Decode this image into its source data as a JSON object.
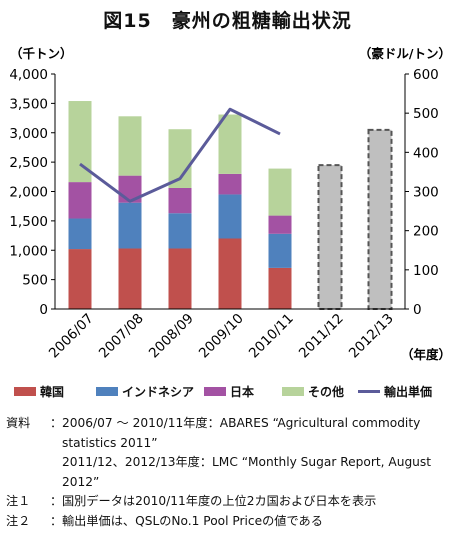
{
  "title": "図15　豪州の粗糖輸出状況",
  "colors": {
    "korea": "#c0504d",
    "indonesia": "#4f81bd",
    "japan": "#a352a3",
    "other": "#b7d39b",
    "forecast": "#bfbfbf",
    "price_line": "#5b5b9a"
  },
  "chart_data": {
    "type": "bar",
    "stacked": true,
    "categories": [
      "2006/07",
      "2007/08",
      "2008/09",
      "2009/10",
      "2010/11",
      "2011/12",
      "2012/13"
    ],
    "series": [
      {
        "name": "韓国",
        "values": [
          1020,
          1030,
          1030,
          1200,
          700,
          null,
          null
        ]
      },
      {
        "name": "インドネシア",
        "values": [
          520,
          780,
          600,
          750,
          580,
          null,
          null
        ]
      },
      {
        "name": "日本",
        "values": [
          620,
          460,
          430,
          350,
          310,
          null,
          null
        ]
      },
      {
        "name": "その他",
        "values": [
          1380,
          1010,
          1000,
          1010,
          800,
          null,
          null
        ]
      }
    ],
    "forecast_totals": [
      null,
      null,
      null,
      null,
      null,
      2450,
      3050
    ],
    "line_series": {
      "name": "輸出単価",
      "values": [
        370,
        275,
        333,
        510,
        447,
        null,
        null
      ]
    },
    "ylabel_left": "（千トン）",
    "ylabel_right": "（豪ドル/トン）",
    "xlabel": "（年度）",
    "ylim_left": [
      0,
      4000
    ],
    "ylim_right": [
      0,
      600
    ],
    "yticks_left": [
      "0",
      "500",
      "1,000",
      "1,500",
      "2,000",
      "2,500",
      "3,000",
      "3,500",
      "4,000"
    ],
    "yticks_right": [
      "0",
      "100",
      "200",
      "300",
      "400",
      "500",
      "600"
    ],
    "grid": false,
    "legend_position": "bottom"
  },
  "legend": {
    "korea": "韓国",
    "indonesia": "インドネシア",
    "japan": "日本",
    "other": "その他",
    "price": "輸出単価"
  },
  "notes": {
    "source_head": "資料",
    "source_line1": "2006/07 ～ 2010/11年度：ABARES “Agricultural commodity",
    "source_line2": "statistics 2011”",
    "source_line3": "2011/12、2012/13年度：LMC “Monthly Sugar Report, August",
    "source_line4": "2012”",
    "note1_head": "注１",
    "note1_body": "国別データは2010/11年度の上位2カ国および日本を表示",
    "note2_head": "注２",
    "note2_body": "輸出単価は、QSLのNo.1 Pool Priceの値である"
  }
}
